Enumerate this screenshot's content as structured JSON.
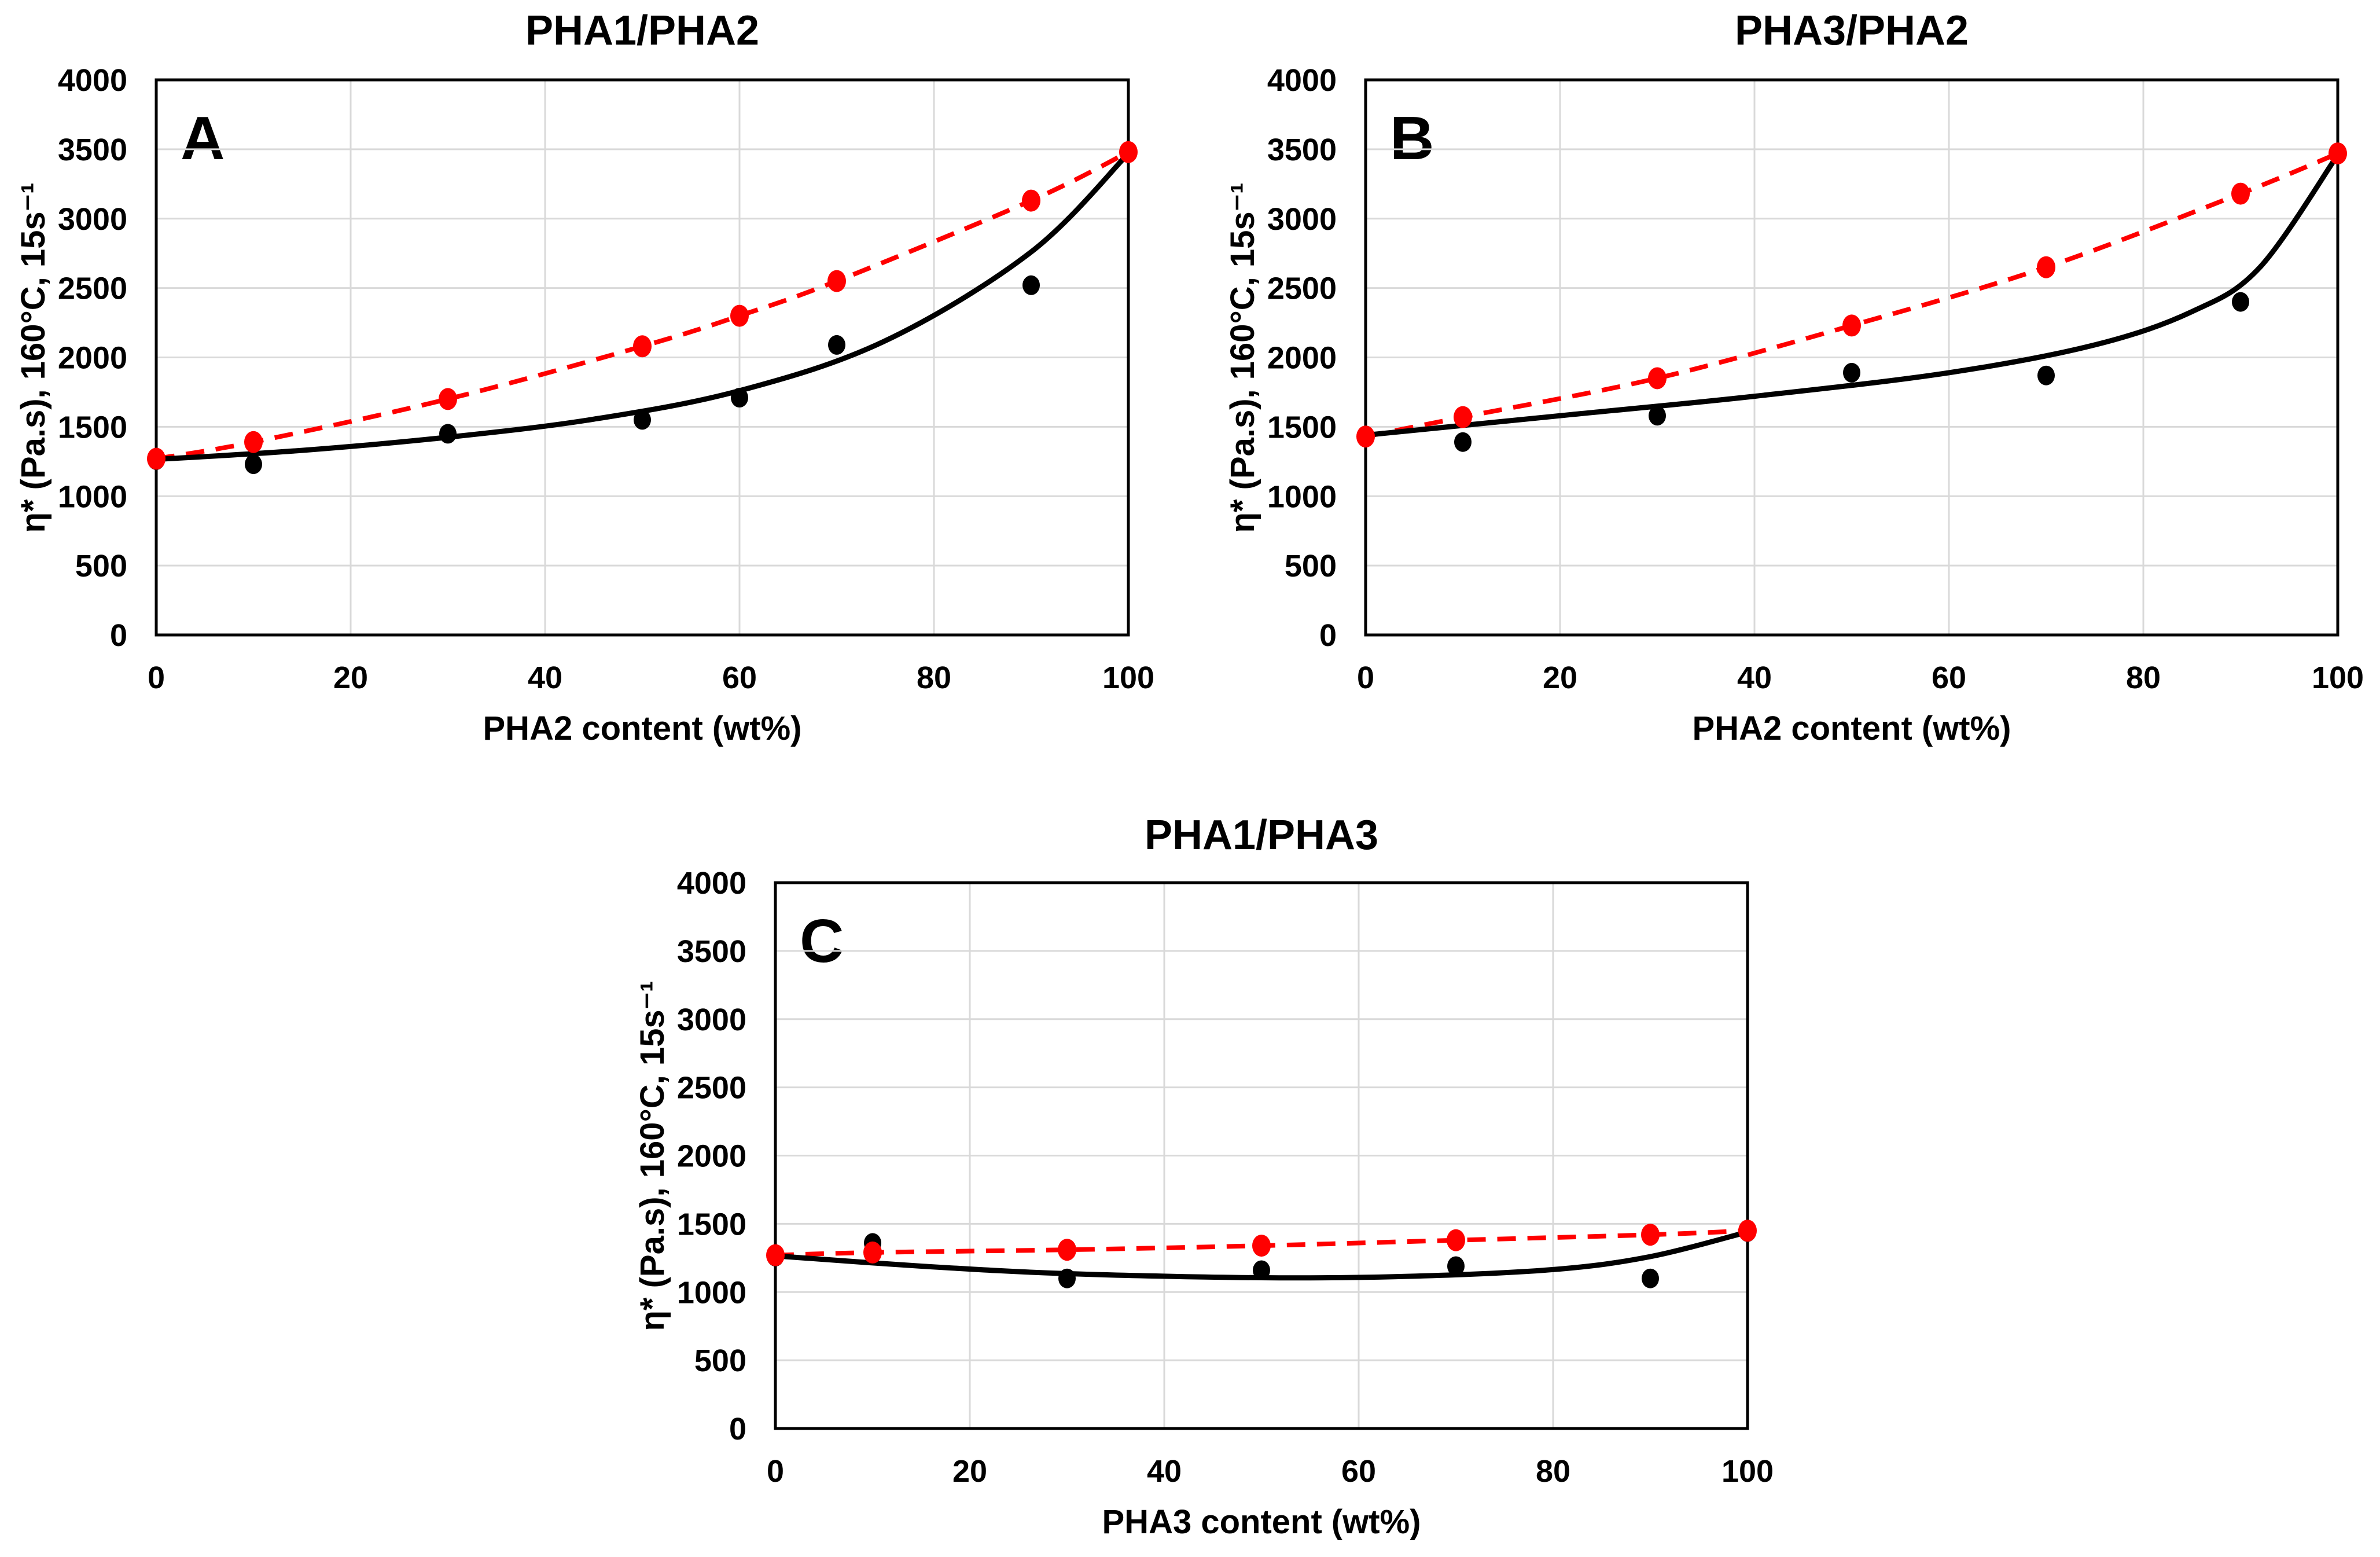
{
  "styles": {
    "background": "#FFFFFF",
    "grid_color": "#D9D9D9",
    "frame_color": "#000000",
    "red": "#FF0000",
    "black": "#000000"
  },
  "chart_data": [
    {
      "type": "scatter",
      "panel_label": "A",
      "title": "PHA1/PHA2",
      "xlabel": "PHA2 content (wt%)",
      "ylabel": "η* (Pa.s), 160°C, 15s⁻¹",
      "axes": {
        "xlim": [
          0,
          100
        ],
        "ylim": [
          0,
          4000
        ],
        "x_ticks": [
          0,
          20,
          40,
          60,
          80,
          100
        ],
        "y_ticks": [
          0,
          500,
          1000,
          1500,
          2000,
          2500,
          3000,
          3500,
          4000
        ],
        "grid": true,
        "legend": "none"
      },
      "series": [
        {
          "name": "model-red-dashed",
          "color": "#FF0000",
          "line": "dashed",
          "marker": "circle",
          "x": [
            0,
            10,
            30,
            50,
            60,
            70,
            90,
            100
          ],
          "y": [
            1270,
            1390,
            1700,
            2080,
            2300,
            2550,
            3130,
            3480
          ]
        },
        {
          "name": "experimental-black",
          "color": "#000000",
          "line": "none",
          "marker": "circle",
          "x": [
            0,
            10,
            30,
            50,
            60,
            70,
            90,
            100
          ],
          "y": [
            1260,
            1230,
            1450,
            1550,
            1710,
            2090,
            2520,
            3480
          ],
          "trend": {
            "line": "solid",
            "x": [
              0,
              15,
              30,
              45,
              60,
              75,
              90,
              100
            ],
            "y": [
              1265,
              1330,
              1425,
              1555,
              1760,
              2120,
              2760,
              3470
            ]
          }
        }
      ]
    },
    {
      "type": "scatter",
      "panel_label": "B",
      "title": "PHA3/PHA2",
      "xlabel": "PHA2 content (wt%)",
      "ylabel": "η* (Pa.s), 160°C, 15s⁻¹",
      "axes": {
        "xlim": [
          0,
          100
        ],
        "ylim": [
          0,
          4000
        ],
        "x_ticks": [
          0,
          20,
          40,
          60,
          80,
          100
        ],
        "y_ticks": [
          0,
          500,
          1000,
          1500,
          2000,
          2500,
          3000,
          3500,
          4000
        ],
        "grid": true,
        "legend": "none"
      },
      "series": [
        {
          "name": "model-red-dashed",
          "color": "#FF0000",
          "line": "dashed",
          "marker": "circle",
          "x": [
            0,
            10,
            30,
            50,
            70,
            90,
            100
          ],
          "y": [
            1430,
            1570,
            1850,
            2230,
            2650,
            3180,
            3470
          ]
        },
        {
          "name": "experimental-black",
          "color": "#000000",
          "line": "none",
          "marker": "circle",
          "x": [
            0,
            10,
            30,
            50,
            70,
            90,
            100
          ],
          "y": [
            1430,
            1390,
            1580,
            1890,
            1870,
            2400,
            3470
          ],
          "trend": {
            "line": "solid",
            "x": [
              0,
              20,
              40,
              60,
              75,
              85,
              92,
              100
            ],
            "y": [
              1440,
              1580,
              1720,
              1890,
              2090,
              2330,
              2650,
              3460
            ]
          }
        }
      ]
    },
    {
      "type": "scatter",
      "panel_label": "C",
      "title": "PHA1/PHA3",
      "xlabel": "PHA3 content (wt%)",
      "ylabel": "η* (Pa.s), 160°C, 15s⁻¹",
      "axes": {
        "xlim": [
          0,
          100
        ],
        "ylim": [
          0,
          4000
        ],
        "x_ticks": [
          0,
          20,
          40,
          60,
          80,
          100
        ],
        "y_ticks": [
          0,
          500,
          1000,
          1500,
          2000,
          2500,
          3000,
          3500,
          4000
        ],
        "grid": true,
        "legend": "none"
      },
      "series": [
        {
          "name": "model-red-dashed",
          "color": "#FF0000",
          "line": "dashed",
          "marker": "circle",
          "x": [
            0,
            10,
            30,
            50,
            70,
            90,
            100
          ],
          "y": [
            1270,
            1290,
            1310,
            1340,
            1380,
            1420,
            1450
          ]
        },
        {
          "name": "experimental-black",
          "color": "#000000",
          "line": "none",
          "marker": "circle",
          "x": [
            0,
            10,
            30,
            50,
            70,
            90,
            100
          ],
          "y": [
            1260,
            1360,
            1100,
            1160,
            1190,
            1100,
            1440
          ],
          "trend": {
            "line": "solid",
            "x": [
              0,
              15,
              30,
              50,
              65,
              80,
              90,
              100
            ],
            "y": [
              1265,
              1190,
              1135,
              1105,
              1115,
              1165,
              1260,
              1440
            ]
          }
        }
      ]
    }
  ]
}
